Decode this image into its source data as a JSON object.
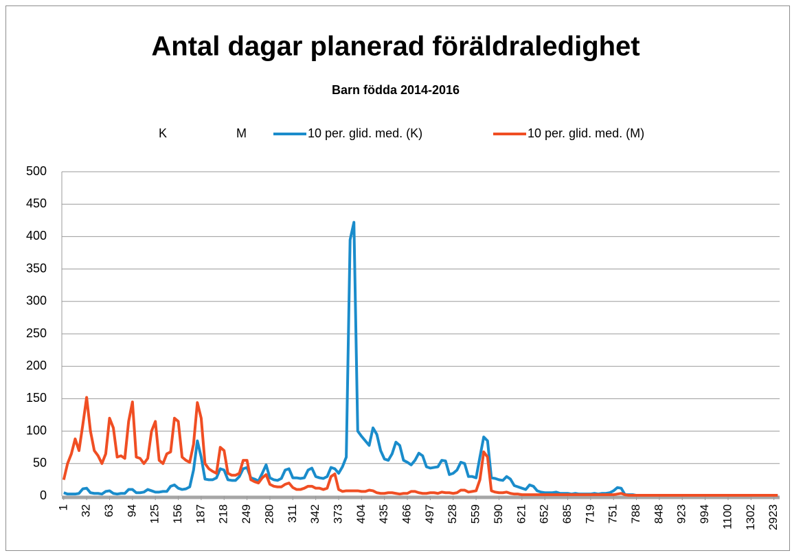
{
  "chart_data": {
    "type": "line",
    "title": "Antal dagar planerad föräldraledighet",
    "subtitle": "Barn födda 2014-2016",
    "legend_extra": [
      "K",
      "M"
    ],
    "categories": [
      1,
      null,
      null,
      null,
      null,
      null,
      32,
      null,
      null,
      null,
      null,
      null,
      63,
      null,
      null,
      null,
      null,
      null,
      94,
      null,
      null,
      null,
      null,
      null,
      125,
      null,
      null,
      null,
      null,
      null,
      156,
      null,
      null,
      null,
      null,
      null,
      187,
      null,
      null,
      null,
      null,
      null,
      218,
      null,
      null,
      null,
      null,
      null,
      249,
      null,
      null,
      null,
      null,
      null,
      280,
      null,
      null,
      null,
      null,
      null,
      311,
      null,
      null,
      null,
      null,
      null,
      342,
      null,
      null,
      null,
      null,
      null,
      373,
      null,
      null,
      null,
      null,
      null,
      404,
      null,
      null,
      null,
      null,
      null,
      435,
      null,
      null,
      null,
      null,
      null,
      466,
      null,
      null,
      null,
      null,
      null,
      497,
      null,
      null,
      null,
      null,
      null,
      528,
      null,
      null,
      null,
      null,
      null,
      559,
      null,
      null,
      null,
      null,
      null,
      590,
      null,
      null,
      null,
      null,
      null,
      621,
      null,
      null,
      null,
      null,
      null,
      652,
      null,
      null,
      null,
      null,
      null,
      685,
      null,
      null,
      null,
      null,
      null,
      719,
      null,
      null,
      null,
      null,
      null,
      751,
      null,
      null,
      null,
      null,
      null,
      788,
      null,
      null,
      null,
      null,
      null,
      848,
      null,
      null,
      null,
      null,
      null,
      923,
      null,
      null,
      null,
      null,
      null,
      994,
      null,
      null,
      null,
      null,
      null,
      1100,
      null,
      null,
      null,
      null,
      null,
      1302,
      null,
      null,
      null,
      null,
      null,
      2923,
      null
    ],
    "series": [
      {
        "name": "10 per. glid. med. (K)",
        "color": "#1a8ccb",
        "values": [
          5,
          3,
          3,
          3,
          4,
          11,
          12,
          5,
          4,
          4,
          3,
          7,
          8,
          4,
          3,
          4,
          4,
          10,
          10,
          5,
          5,
          6,
          10,
          8,
          6,
          6,
          7,
          7,
          15,
          17,
          12,
          10,
          11,
          14,
          40,
          85,
          60,
          26,
          25,
          25,
          28,
          42,
          40,
          25,
          24,
          24,
          30,
          42,
          44,
          28,
          26,
          23,
          35,
          48,
          28,
          25,
          24,
          27,
          40,
          42,
          28,
          28,
          27,
          28,
          40,
          43,
          30,
          28,
          27,
          30,
          44,
          42,
          35,
          45,
          60,
          395,
          422,
          100,
          92,
          85,
          78,
          105,
          95,
          70,
          57,
          55,
          65,
          83,
          78,
          55,
          52,
          48,
          55,
          66,
          62,
          45,
          43,
          44,
          45,
          55,
          54,
          33,
          35,
          40,
          52,
          50,
          30,
          30,
          28,
          60,
          91,
          85,
          28,
          27,
          25,
          24,
          30,
          26,
          16,
          14,
          12,
          10,
          17,
          15,
          8,
          6,
          5,
          5,
          5,
          6,
          4,
          4,
          4,
          3,
          4,
          3,
          3,
          3,
          3,
          4,
          3,
          4,
          4,
          5,
          8,
          13,
          12,
          2,
          2,
          2,
          1,
          1,
          1,
          1,
          1,
          1,
          1,
          1,
          1,
          1,
          1,
          1,
          1,
          1,
          1,
          1,
          1,
          1,
          1,
          1,
          1,
          1,
          1,
          1,
          1,
          1,
          1,
          1,
          1,
          1,
          1,
          1,
          1,
          1,
          1,
          1,
          1,
          1
        ]
      },
      {
        "name": "10 per. glid. med. (M)",
        "color": "#f04e23",
        "values": [
          25,
          50,
          65,
          88,
          70,
          110,
          152,
          100,
          70,
          62,
          50,
          65,
          120,
          105,
          60,
          62,
          58,
          115,
          145,
          60,
          58,
          50,
          58,
          100,
          115,
          55,
          50,
          65,
          68,
          120,
          115,
          60,
          55,
          52,
          80,
          144,
          120,
          50,
          42,
          38,
          35,
          75,
          70,
          35,
          32,
          32,
          35,
          55,
          55,
          25,
          22,
          20,
          28,
          33,
          18,
          15,
          14,
          14,
          18,
          20,
          13,
          10,
          10,
          12,
          15,
          15,
          12,
          12,
          10,
          12,
          30,
          34,
          10,
          7,
          8,
          8,
          8,
          8,
          7,
          7,
          9,
          8,
          5,
          4,
          4,
          5,
          5,
          4,
          3,
          4,
          4,
          7,
          7,
          5,
          4,
          4,
          5,
          5,
          4,
          6,
          5,
          5,
          4,
          5,
          9,
          9,
          6,
          7,
          8,
          25,
          68,
          60,
          8,
          6,
          5,
          5,
          6,
          4,
          3,
          3,
          2,
          2,
          2,
          2,
          2,
          2,
          2,
          2,
          2,
          2,
          2,
          2,
          2,
          2,
          2,
          2,
          2,
          2,
          2,
          2,
          2,
          2,
          2,
          2,
          2,
          3,
          4,
          2,
          1,
          1,
          1,
          1,
          1,
          1,
          1,
          1,
          1,
          1,
          1,
          1,
          1,
          1,
          1,
          1,
          1,
          1,
          1,
          1,
          1,
          1,
          1,
          1,
          1,
          1,
          1,
          1,
          1,
          1,
          1,
          1,
          1,
          1,
          1,
          1,
          1,
          1,
          1,
          1
        ]
      }
    ],
    "ylim": [
      0,
      500
    ],
    "yticks": [
      0,
      50,
      100,
      150,
      200,
      250,
      300,
      350,
      400,
      450,
      500
    ],
    "grid": true
  }
}
